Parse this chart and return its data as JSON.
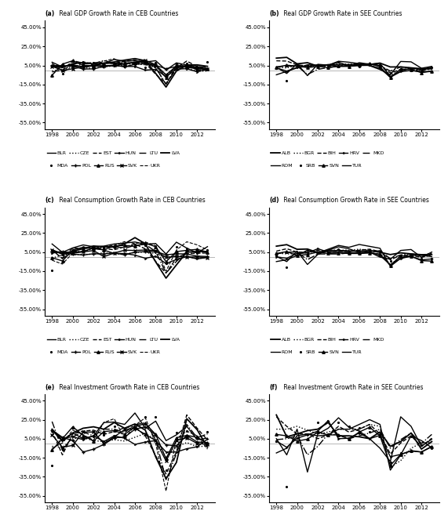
{
  "years": [
    1998,
    1999,
    2000,
    2001,
    2002,
    2003,
    2004,
    2005,
    2006,
    2007,
    2008,
    2009,
    2010,
    2011,
    2012,
    2013
  ],
  "ceb_gdp": {
    "BLR": [
      8.4,
      3.4,
      5.8,
      3.0,
      5.0,
      7.0,
      11.4,
      9.4,
      10.0,
      8.6,
      10.0,
      0.2,
      7.7,
      5.5,
      1.5,
      1.0
    ],
    "CZE": [
      -0.8,
      1.3,
      3.6,
      2.5,
      1.9,
      3.6,
      4.5,
      6.3,
      6.8,
      5.7,
      3.1,
      -4.5,
      2.3,
      1.9,
      -1.0,
      -0.9
    ],
    "EST": [
      5.0,
      -0.3,
      10.0,
      7.5,
      7.9,
      7.6,
      7.2,
      9.4,
      10.6,
      7.5,
      -4.2,
      -14.1,
      2.6,
      9.6,
      3.9,
      1.6
    ],
    "HUN": [
      4.9,
      4.2,
      5.2,
      3.8,
      4.5,
      3.9,
      4.8,
      4.0,
      3.9,
      0.1,
      0.9,
      -6.8,
      1.1,
      1.6,
      -1.7,
      1.1
    ],
    "LTU": [
      7.3,
      -1.8,
      3.3,
      6.7,
      6.9,
      10.2,
      7.4,
      7.8,
      7.8,
      9.8,
      2.9,
      -14.8,
      1.6,
      6.0,
      3.7,
      3.3
    ],
    "LVA": [
      4.8,
      2.8,
      6.9,
      8.0,
      6.5,
      7.2,
      8.7,
      10.6,
      12.2,
      10.0,
      -3.3,
      -17.7,
      -0.9,
      5.5,
      5.6,
      4.1
    ],
    "MDA": [
      -6.5,
      -3.4,
      2.1,
      6.1,
      7.8,
      6.6,
      7.4,
      7.5,
      4.8,
      3.0,
      7.8,
      -6.0,
      7.1,
      6.8,
      -0.7,
      8.9
    ],
    "POL": [
      5.0,
      4.5,
      4.3,
      1.2,
      1.4,
      3.9,
      5.3,
      3.6,
      6.2,
      6.8,
      5.1,
      1.6,
      3.9,
      4.5,
      1.9,
      1.6
    ],
    "RUS": [
      -5.3,
      6.4,
      10.0,
      5.1,
      4.7,
      7.3,
      7.2,
      6.4,
      8.2,
      8.5,
      5.2,
      -7.8,
      4.5,
      4.3,
      3.4,
      1.3
    ],
    "SVK": [
      4.0,
      0.0,
      1.4,
      3.5,
      4.6,
      4.8,
      5.1,
      6.7,
      8.3,
      10.5,
      5.8,
      -4.9,
      4.4,
      3.0,
      1.6,
      1.4
    ],
    "UKR": [
      -1.9,
      -0.2,
      5.9,
      9.2,
      5.2,
      9.6,
      12.1,
      2.7,
      7.3,
      7.9,
      2.3,
      -14.8,
      4.2,
      5.2,
      0.2,
      0.0
    ]
  },
  "see_gdp": {
    "ALB": [
      12.7,
      13.5,
      6.7,
      7.9,
      4.2,
      5.8,
      5.7,
      5.8,
      5.9,
      5.9,
      7.5,
      3.4,
      3.5,
      2.5,
      1.6,
      1.4
    ],
    "BGR": [
      3.5,
      2.3,
      5.4,
      4.1,
      4.9,
      5.5,
      6.7,
      6.4,
      6.5,
      6.4,
      6.2,
      -5.5,
      0.4,
      1.8,
      0.6,
      0.9
    ],
    "BIH": [
      9.9,
      9.6,
      5.6,
      4.4,
      5.5,
      4.0,
      6.2,
      4.0,
      6.0,
      6.2,
      5.4,
      -2.9,
      0.8,
      1.0,
      -1.1,
      2.5
    ],
    "HRV": [
      2.5,
      -0.9,
      2.9,
      3.9,
      5.6,
      5.4,
      4.1,
      4.3,
      4.9,
      5.1,
      2.1,
      -7.4,
      -1.5,
      -0.3,
      -1.9,
      -1.0
    ],
    "MKD": [
      3.4,
      4.3,
      4.5,
      -4.5,
      0.9,
      2.8,
      4.1,
      4.4,
      5.0,
      6.1,
      5.0,
      -0.9,
      3.4,
      2.3,
      -0.3,
      2.9
    ],
    "ROM": [
      -4.8,
      -1.2,
      2.4,
      5.7,
      5.1,
      5.2,
      8.5,
      4.2,
      7.9,
      6.3,
      7.3,
      -6.6,
      -1.1,
      2.2,
      0.6,
      3.5
    ],
    "SRB": [
      2.5,
      -11.2,
      5.3,
      5.1,
      4.5,
      2.5,
      8.7,
      5.4,
      3.6,
      6.9,
      5.4,
      -3.1,
      1.0,
      1.6,
      -1.5,
      2.6
    ],
    "SVN": [
      3.3,
      5.3,
      4.3,
      2.8,
      4.0,
      2.8,
      4.3,
      4.0,
      5.8,
      6.9,
      3.7,
      -7.8,
      1.3,
      0.7,
      -2.5,
      -1.1
    ],
    "TUR": [
      3.1,
      -3.4,
      6.8,
      -5.7,
      6.2,
      5.3,
      9.4,
      8.4,
      6.9,
      4.7,
      0.7,
      -4.8,
      9.2,
      8.8,
      2.1,
      4.0
    ]
  },
  "ceb_cons": {
    "BLR": [
      13.5,
      4.7,
      9.4,
      12.5,
      10.6,
      11.3,
      13.5,
      14.5,
      15.6,
      13.2,
      14.0,
      3.0,
      15.4,
      9.2,
      4.0,
      10.7
    ],
    "CZE": [
      -1.3,
      1.8,
      2.1,
      2.7,
      2.7,
      4.3,
      3.1,
      2.6,
      4.6,
      5.0,
      3.6,
      -0.4,
      0.8,
      0.2,
      -1.8,
      -0.7
    ],
    "EST": [
      6.5,
      -1.3,
      9.4,
      8.3,
      10.1,
      8.4,
      7.5,
      10.5,
      13.4,
      8.4,
      -4.8,
      -17.1,
      -1.3,
      3.7,
      3.7,
      4.1
    ],
    "HUN": [
      4.2,
      4.7,
      5.1,
      5.6,
      9.3,
      7.1,
      3.5,
      3.5,
      1.8,
      -1.5,
      0.6,
      -7.1,
      -2.8,
      0.2,
      -2.1,
      -0.7
    ],
    "LTU": [
      7.5,
      -2.0,
      5.7,
      5.5,
      8.7,
      10.3,
      11.0,
      8.8,
      12.1,
      13.1,
      5.6,
      -17.0,
      -4.8,
      5.5,
      4.5,
      5.3
    ],
    "LVA": [
      7.0,
      3.0,
      6.1,
      8.5,
      11.4,
      10.5,
      10.3,
      13.7,
      20.2,
      13.7,
      -5.3,
      -22.4,
      -8.5,
      5.0,
      5.5,
      5.6
    ],
    "MDA": [
      -14.0,
      2.0,
      5.9,
      6.8,
      7.4,
      9.3,
      9.9,
      12.2,
      12.8,
      12.0,
      11.0,
      -6.5,
      10.7,
      8.5,
      4.0,
      6.8
    ],
    "POL": [
      4.9,
      5.4,
      2.8,
      2.0,
      3.2,
      3.1,
      4.2,
      2.1,
      5.0,
      5.4,
      5.7,
      2.1,
      3.2,
      3.0,
      0.8,
      0.3
    ],
    "RUS": [
      -0.9,
      -4.3,
      7.2,
      10.0,
      8.5,
      7.5,
      11.3,
      12.0,
      11.0,
      14.4,
      10.6,
      -5.1,
      5.5,
      6.8,
      7.9,
      5.0
    ],
    "SVK": [
      7.5,
      2.9,
      3.7,
      5.2,
      6.6,
      0.2,
      4.0,
      7.0,
      6.7,
      7.2,
      6.7,
      -0.6,
      0.4,
      -0.1,
      -0.1,
      -0.7
    ],
    "UKR": [
      -3.6,
      -7.6,
      4.1,
      10.5,
      9.0,
      10.9,
      11.9,
      16.0,
      13.9,
      15.6,
      11.6,
      -15.1,
      7.1,
      15.8,
      12.6,
      7.3
    ]
  },
  "see_cons": {
    "ALB": [
      11.2,
      12.8,
      7.9,
      8.2,
      4.4,
      6.4,
      6.6,
      6.2,
      5.8,
      6.5,
      4.8,
      2.4,
      4.2,
      3.1,
      2.3,
      2.4
    ],
    "BGR": [
      4.0,
      3.0,
      3.5,
      4.5,
      5.5,
      7.0,
      7.0,
      7.0,
      8.0,
      7.0,
      4.5,
      -8.0,
      0.0,
      1.3,
      2.0,
      0.9
    ],
    "BIH": [
      6.0,
      8.5,
      5.0,
      4.8,
      6.8,
      4.5,
      5.8,
      5.5,
      7.0,
      8.0,
      5.5,
      -3.0,
      1.5,
      1.5,
      -0.5,
      2.0
    ],
    "HRV": [
      0.0,
      -1.5,
      3.7,
      4.1,
      8.5,
      5.0,
      4.7,
      4.5,
      3.5,
      5.2,
      1.5,
      -8.3,
      -1.7,
      0.5,
      -3.2,
      -2.2
    ],
    "MKD": [
      3.0,
      5.0,
      5.0,
      -3.0,
      3.0,
      3.0,
      3.0,
      4.0,
      4.0,
      5.0,
      6.5,
      -2.0,
      2.0,
      3.0,
      2.0,
      3.5
    ],
    "ROM": [
      -5.0,
      -3.0,
      1.4,
      7.0,
      4.0,
      8.0,
      12.0,
      10.0,
      13.0,
      11.0,
      9.0,
      -10.0,
      -1.5,
      1.5,
      1.5,
      0.3
    ],
    "SRB": [
      1.5,
      -11.0,
      1.5,
      7.5,
      5.0,
      4.5,
      8.0,
      5.0,
      6.5,
      7.5,
      5.5,
      -4.0,
      -0.5,
      1.0,
      -1.5,
      -1.5
    ],
    "SVN": [
      3.5,
      5.5,
      1.4,
      2.5,
      5.0,
      3.5,
      4.0,
      3.5,
      3.5,
      4.0,
      3.0,
      -9.0,
      1.0,
      0.5,
      -4.0,
      -4.5
    ],
    "TUR": [
      0.5,
      -5.0,
      6.0,
      -8.0,
      2.5,
      7.0,
      10.5,
      8.5,
      4.5,
      5.0,
      -0.3,
      -2.5,
      6.7,
      7.7,
      -0.5,
      5.0
    ]
  },
  "ceb_inv": {
    "BLR": [
      14.0,
      2.0,
      11.0,
      5.0,
      8.0,
      22.0,
      22.5,
      20.0,
      32.0,
      16.0,
      23.5,
      3.0,
      9.0,
      18.0,
      4.0,
      5.5
    ],
    "CZE": [
      -3.0,
      -4.0,
      5.0,
      6.0,
      3.0,
      2.0,
      4.0,
      2.5,
      6.5,
      10.5,
      4.0,
      -15.0,
      -3.5,
      1.0,
      -3.5,
      -2.5
    ],
    "EST": [
      13.0,
      -12.0,
      10.0,
      13.0,
      14.0,
      9.5,
      12.5,
      16.5,
      17.5,
      8.0,
      -13.0,
      -32.0,
      -9.0,
      30.0,
      16.0,
      3.5
    ],
    "HUN": [
      13.0,
      5.5,
      7.0,
      4.0,
      8.0,
      2.0,
      8.0,
      5.5,
      -1.0,
      1.5,
      3.0,
      -9.0,
      -9.0,
      -5.5,
      -3.5,
      4.5
    ],
    "LTU": [
      23.0,
      -7.0,
      7.0,
      12.0,
      8.0,
      15.0,
      15.0,
      11.5,
      19.5,
      22.0,
      4.0,
      -38.0,
      -11.0,
      20.0,
      6.0,
      10.0
    ],
    "LVA": [
      15.0,
      3.0,
      11.0,
      16.0,
      17.5,
      15.0,
      22.0,
      16.0,
      20.5,
      14.0,
      -14.0,
      -37.0,
      -20.0,
      26.0,
      14.5,
      -4.0
    ],
    "MDA": [
      -23.0,
      -7.0,
      3.0,
      7.0,
      7.5,
      9.0,
      18.0,
      8.0,
      16.5,
      28.0,
      28.0,
      -28.0,
      11.5,
      13.0,
      7.0,
      12.0
    ],
    "POL": [
      14.0,
      6.5,
      3.0,
      -9.0,
      -6.0,
      -1.0,
      6.0,
      6.5,
      15.0,
      17.5,
      9.0,
      -1.5,
      -2.5,
      8.5,
      1.5,
      1.0
    ],
    "RUS": [
      -7.0,
      5.0,
      17.5,
      8.5,
      2.5,
      12.5,
      13.5,
      9.5,
      17.5,
      21.0,
      9.5,
      -16.0,
      6.0,
      8.5,
      6.5,
      -0.5
    ],
    "SVK": [
      9.0,
      -4.0,
      -2.0,
      12.0,
      12.0,
      0.0,
      7.0,
      14.5,
      16.0,
      9.5,
      3.0,
      -18.5,
      3.0,
      6.0,
      0.0,
      -1.0
    ],
    "UKR": [
      -5.0,
      0.5,
      14.0,
      9.0,
      3.5,
      22.0,
      26.0,
      5.0,
      19.0,
      27.0,
      0.0,
      -50.0,
      5.0,
      13.0,
      8.0,
      -6.0
    ]
  },
  "see_inv": {
    "ALB": [
      30.0,
      7.0,
      10.0,
      13.5,
      15.0,
      22.0,
      8.0,
      8.0,
      7.0,
      5.0,
      12.0,
      -3.0,
      2.0,
      11.0,
      -6.0,
      2.0
    ],
    "BGR": [
      15.0,
      15.0,
      18.0,
      14.0,
      10.0,
      12.0,
      15.0,
      15.0,
      15.0,
      20.0,
      18.0,
      -25.0,
      -18.0,
      -5.0,
      0.5,
      1.0
    ],
    "BIH": [
      28.0,
      18.0,
      10.0,
      10.0,
      5.0,
      9.0,
      18.0,
      12.0,
      15.0,
      20.0,
      10.0,
      -11.0,
      0.5,
      8.0,
      -3.0,
      5.5
    ],
    "HRV": [
      2.5,
      -4.0,
      5.5,
      9.0,
      13.0,
      24.0,
      5.0,
      5.5,
      11.0,
      5.0,
      8.5,
      -14.0,
      -11.5,
      -8.0,
      -9.0,
      -3.0
    ],
    "MKD": [
      4.0,
      5.0,
      8.0,
      -12.0,
      -3.0,
      10.0,
      9.0,
      5.0,
      8.0,
      11.0,
      15.0,
      -5.0,
      4.0,
      11.0,
      0.0,
      9.5
    ],
    "ROM": [
      -10.0,
      -5.0,
      8.0,
      10.0,
      8.0,
      9.0,
      15.0,
      15.0,
      20.0,
      25.0,
      20.0,
      -28.0,
      -12.0,
      8.0,
      3.0,
      -4.5
    ],
    "SRB": [
      2.0,
      -45.0,
      2.0,
      10.0,
      22.0,
      10.0,
      22.0,
      18.0,
      16.0,
      12.0,
      10.0,
      -20.0,
      -10.0,
      7.0,
      -2.0,
      -5.0
    ],
    "SVN": [
      9.5,
      8.0,
      2.5,
      4.5,
      12.0,
      9.0,
      9.0,
      4.5,
      12.0,
      17.0,
      8.0,
      -23.0,
      -11.5,
      -7.5,
      -9.0,
      -3.5
    ],
    "TUR": [
      5.0,
      -12.0,
      15.0,
      -30.0,
      10.0,
      16.0,
      27.0,
      17.0,
      13.0,
      5.0,
      -5.0,
      -19.0,
      28.0,
      18.0,
      -3.0,
      4.5
    ]
  },
  "ceb_styles": {
    "BLR": {
      "ls": "-",
      "marker": "None",
      "lw": 1.0
    },
    "CZE": {
      "ls": ":",
      "marker": "None",
      "lw": 1.0
    },
    "EST": {
      "ls": "--",
      "marker": "None",
      "lw": 1.0
    },
    "HUN": {
      "ls": "-",
      "marker": "4",
      "lw": 1.0
    },
    "LTU": {
      "ls": "-.",
      "marker": "None",
      "lw": 1.0
    },
    "LVA": {
      "ls": "-",
      "marker": "None",
      "lw": 1.3
    },
    "MDA": {
      "ls": "None",
      "marker": ".",
      "lw": 1.0
    },
    "POL": {
      "ls": "-",
      "marker": "+",
      "lw": 1.0
    },
    "RUS": {
      "ls": "-",
      "marker": "^",
      "lw": 1.0
    },
    "SVK": {
      "ls": "-",
      "marker": "x",
      "lw": 1.0
    },
    "UKR": {
      "ls": "--",
      "marker": "None",
      "lw": 0.8
    }
  },
  "see_styles": {
    "ALB": {
      "ls": "-",
      "marker": "None",
      "lw": 1.3
    },
    "BGR": {
      "ls": ":",
      "marker": "None",
      "lw": 1.0
    },
    "BIH": {
      "ls": "--",
      "marker": "None",
      "lw": 1.0
    },
    "HRV": {
      "ls": "-",
      "marker": "4",
      "lw": 1.0
    },
    "MKD": {
      "ls": "-.",
      "marker": "None",
      "lw": 1.0
    },
    "ROM": {
      "ls": "-",
      "marker": "None",
      "lw": 1.0
    },
    "SRB": {
      "ls": "None",
      "marker": ".",
      "lw": 1.0
    },
    "SVN": {
      "ls": "-",
      "marker": "^",
      "lw": 1.0
    },
    "TUR": {
      "ls": "-",
      "marker": "None",
      "lw": 1.0
    }
  },
  "yticks": [
    -55,
    -35,
    -15,
    5,
    25,
    45
  ],
  "ylim": [
    -62,
    52
  ],
  "xlim": [
    1997.3,
    2013.7
  ],
  "xticks": [
    1998,
    2000,
    2002,
    2004,
    2006,
    2008,
    2010,
    2012
  ],
  "titles": {
    "a": "(a) Real GDP Growth Rate in CEB Countries",
    "b": "(b) Real GDP Growth Rate in SEE Countries",
    "c": "(c) Real Consumption Growth Rate in CEB Countries",
    "d": "(d) Real Consumption Growth Rate in SEE Countries",
    "e": "(e) Real Investment Growth Rate in CEB Countries",
    "f": "(f) Real Investment Growth Rate in SEE Countries"
  },
  "ceb_legend_row1": [
    "BLR",
    "CZE",
    "EST",
    "HUN",
    "LTU",
    "LVA"
  ],
  "ceb_legend_row2": [
    "MDA",
    "POL",
    "RUS",
    "SVK",
    "UKR"
  ],
  "see_legend_row1": [
    "ALB",
    "BGR",
    "BIH",
    "HRV",
    "MKD"
  ],
  "see_legend_row2": [
    "ROM",
    "SRB",
    "SVN",
    "TUR"
  ],
  "tick_fontsize": 5,
  "title_fontsize": 5.5,
  "legend_fontsize": 4.5
}
